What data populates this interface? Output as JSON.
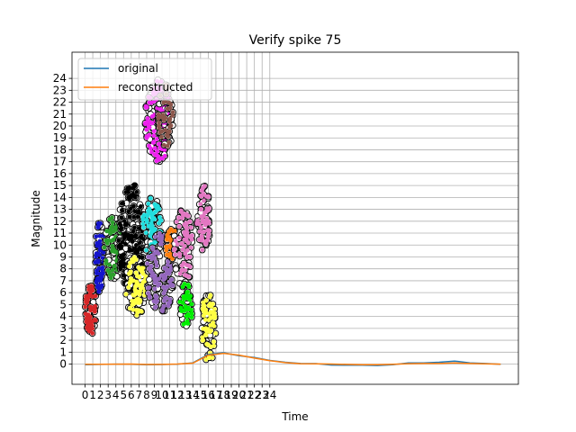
{
  "chart_data": {
    "type": "scatter",
    "title": "Verify spike 75",
    "xlabel": "Time",
    "ylabel": "Magnitude",
    "xlim": [
      -1.7,
      56.3
    ],
    "ylim": [
      -1.7,
      26.2
    ],
    "x_ticks": [
      0,
      1,
      2,
      3,
      4,
      5,
      6,
      7,
      8,
      9,
      10,
      11,
      12,
      13,
      14,
      15,
      16,
      17,
      18,
      19,
      20,
      21,
      22,
      23,
      24
    ],
    "x_tick_labels": [
      "0",
      "1",
      "2",
      "3",
      "4",
      "5",
      "6",
      "7",
      "8",
      "9",
      "10",
      "11",
      "12",
      "13",
      "14",
      "15",
      "16",
      "17",
      "18",
      "19",
      "20",
      "21",
      "22",
      "23",
      "24"
    ],
    "y_ticks": [
      0,
      1,
      2,
      3,
      4,
      5,
      6,
      7,
      8,
      9,
      10,
      11,
      12,
      13,
      14,
      15,
      16,
      17,
      18,
      19,
      20,
      21,
      22,
      23,
      24
    ],
    "y_tick_labels": [
      "0",
      "1",
      "2",
      "3",
      "4",
      "5",
      "6",
      "7",
      "8",
      "9",
      "10",
      "11",
      "12",
      "13",
      "14",
      "15",
      "16",
      "17",
      "18",
      "19",
      "20",
      "21",
      "22",
      "23",
      "24"
    ],
    "grid": true,
    "legend": {
      "placement": "top-left",
      "entries": [
        "original",
        "reconstructed"
      ]
    },
    "series": [
      {
        "name": "original",
        "color": "#1f77b4",
        "x": [
          0,
          2,
          4,
          6,
          8,
          10,
          12,
          14,
          16,
          18,
          20,
          22,
          24,
          26,
          28,
          30,
          32,
          34,
          36,
          38,
          40,
          42,
          44,
          46,
          48,
          50,
          52,
          54
        ],
        "y": [
          -0.05,
          -0.03,
          -0.01,
          -0.02,
          -0.05,
          -0.04,
          -0.01,
          0.1,
          0.8,
          0.95,
          0.7,
          0.55,
          0.3,
          0.15,
          0.05,
          0.04,
          -0.08,
          -0.1,
          -0.1,
          -0.12,
          -0.05,
          0.1,
          0.1,
          0.15,
          0.25,
          0.1,
          0.05,
          -0.02
        ]
      },
      {
        "name": "reconstructed",
        "color": "#ff7f0e",
        "x": [
          0,
          2,
          4,
          6,
          8,
          10,
          12,
          14,
          16,
          18,
          20,
          22,
          24,
          26,
          28,
          30,
          32,
          34,
          36,
          38,
          40,
          42,
          44,
          46,
          48,
          50,
          52,
          54
        ],
        "y": [
          -0.02,
          -0.02,
          -0.01,
          0.0,
          -0.04,
          -0.03,
          0.0,
          0.08,
          0.75,
          0.9,
          0.75,
          0.5,
          0.28,
          0.12,
          0.03,
          0.02,
          0.0,
          -0.03,
          -0.05,
          -0.05,
          -0.02,
          0.03,
          0.05,
          0.05,
          0.1,
          0.05,
          0.02,
          -0.01
        ]
      }
    ],
    "clusters": [
      {
        "color": "#d62728",
        "x_min": 0,
        "x_max": 1.5,
        "y_min": 2.5,
        "y_max": 6.8,
        "count": 70
      },
      {
        "color": "#1515cc",
        "x_min": 1.3,
        "x_max": 2.5,
        "y_min": 6.0,
        "y_max": 12.0,
        "count": 70
      },
      {
        "color": "#2ca02c",
        "x_min": 2.5,
        "x_max": 5.0,
        "y_min": 7.0,
        "y_max": 12.5,
        "count": 90
      },
      {
        "color": "#000000",
        "x_min": 4.2,
        "x_max": 7.8,
        "y_min": 6.0,
        "y_max": 15.2,
        "count": 180
      },
      {
        "color": "#ffff44",
        "x_min": 5.2,
        "x_max": 8.0,
        "y_min": 4.0,
        "y_max": 9.0,
        "count": 100
      },
      {
        "color": "#22dddd",
        "x_min": 7.4,
        "x_max": 10.0,
        "y_min": 9.0,
        "y_max": 14.0,
        "count": 90
      },
      {
        "color": "#ee22ee",
        "x_min": 7.8,
        "x_max": 11.3,
        "y_min": 17.0,
        "y_max": 24.0,
        "count": 180
      },
      {
        "color": "#8c564b",
        "x_min": 9.5,
        "x_max": 11.5,
        "y_min": 18.0,
        "y_max": 23.5,
        "count": 60
      },
      {
        "color": "#9467bd",
        "x_min": 8.0,
        "x_max": 11.5,
        "y_min": 4.0,
        "y_max": 11.0,
        "count": 130
      },
      {
        "color": "#ff7f0e",
        "x_min": 10.5,
        "x_max": 12.0,
        "y_min": 8.5,
        "y_max": 11.5,
        "count": 40
      },
      {
        "color": "#e377c2",
        "x_min": 11.5,
        "x_max": 14.0,
        "y_min": 6.5,
        "y_max": 13.0,
        "count": 90
      },
      {
        "color": "#00ee00",
        "x_min": 12.3,
        "x_max": 14.0,
        "y_min": 3.0,
        "y_max": 7.0,
        "count": 50
      },
      {
        "color": "#e377c2",
        "x_min": 14.5,
        "x_max": 16.3,
        "y_min": 9.5,
        "y_max": 15.0,
        "count": 80
      },
      {
        "color": "#ffff44",
        "x_min": 15.0,
        "x_max": 17.0,
        "y_min": 0.0,
        "y_max": 6.0,
        "count": 80
      }
    ]
  }
}
